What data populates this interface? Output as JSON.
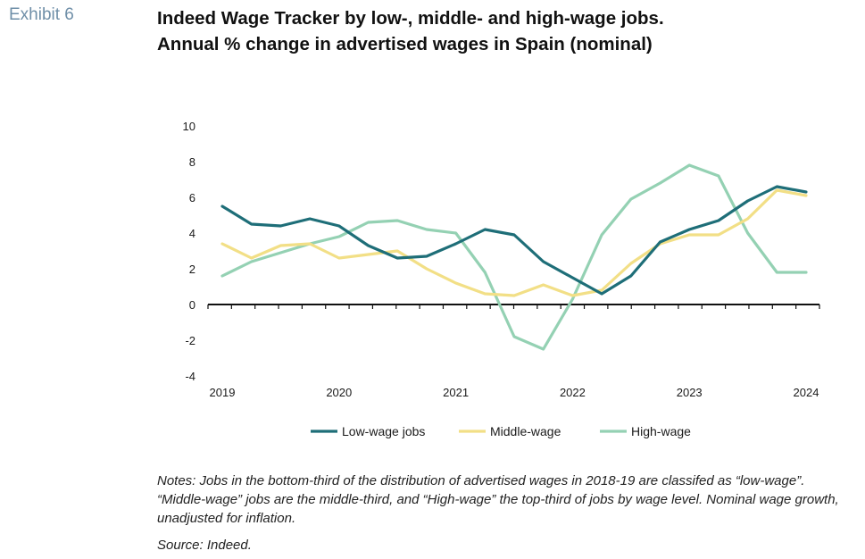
{
  "exhibit_label": "Exhibit 6",
  "title_line1": "Indeed Wage Tracker by low-, middle- and high-wage jobs.",
  "title_line2": "Annual % change in advertised wages in Spain (nominal)",
  "notes": "Notes: Jobs in the bottom-third of the distribution of advertised wages in 2018-19 are classifed as “low-wage”. “Middle-wage” jobs are the middle-third, and “High-wage” the top-third of jobs by wage level. Nominal wage growth, unadjusted for inflation.",
  "source": "Source: Indeed.",
  "chart_data": {
    "type": "line",
    "title": "Indeed Wage Tracker by low-, middle- and high-wage jobs.",
    "subtitle": "Annual % change in advertised wages in Spain (nominal)",
    "xlabel": "",
    "ylabel": "",
    "ylim": [
      -4,
      10
    ],
    "yticks": [
      -4,
      -2,
      0,
      2,
      4,
      6,
      8,
      10
    ],
    "xtick_labels": [
      "2019",
      "2020",
      "2021",
      "2022",
      "2023",
      "2024"
    ],
    "xtick_values": [
      2019.0,
      2020.0,
      2021.0,
      2022.0,
      2023.0,
      2024.0
    ],
    "grid": false,
    "legend": "bottom",
    "x": [
      2019.0,
      2019.25,
      2019.5,
      2019.75,
      2020.0,
      2020.25,
      2020.5,
      2020.75,
      2021.0,
      2021.25,
      2021.5,
      2021.75,
      2022.0,
      2022.25,
      2022.5,
      2022.75,
      2023.0,
      2023.25,
      2023.5,
      2023.75,
      2024.0
    ],
    "series": [
      {
        "name": "Low-wage jobs",
        "color": "#1e6e78",
        "values": [
          5.5,
          4.5,
          4.4,
          4.8,
          4.4,
          3.3,
          2.6,
          2.7,
          3.4,
          4.2,
          3.9,
          2.4,
          1.5,
          0.6,
          1.6,
          3.5,
          4.2,
          4.7,
          5.8,
          6.6,
          6.3
        ]
      },
      {
        "name": "Middle-wage",
        "color": "#f2df86",
        "values": [
          3.4,
          2.6,
          3.3,
          3.4,
          2.6,
          2.8,
          3.0,
          2.0,
          1.2,
          0.6,
          0.5,
          1.1,
          0.5,
          0.8,
          2.3,
          3.4,
          3.9,
          3.9,
          4.8,
          6.4,
          6.1
        ]
      },
      {
        "name": "High-wage",
        "color": "#94d1b3",
        "values": [
          1.6,
          2.4,
          2.9,
          3.4,
          3.8,
          4.6,
          4.7,
          4.2,
          4.0,
          1.8,
          -1.8,
          -2.5,
          0.3,
          3.9,
          5.9,
          6.8,
          7.8,
          7.2,
          4.0,
          1.8,
          1.8
        ]
      }
    ]
  }
}
